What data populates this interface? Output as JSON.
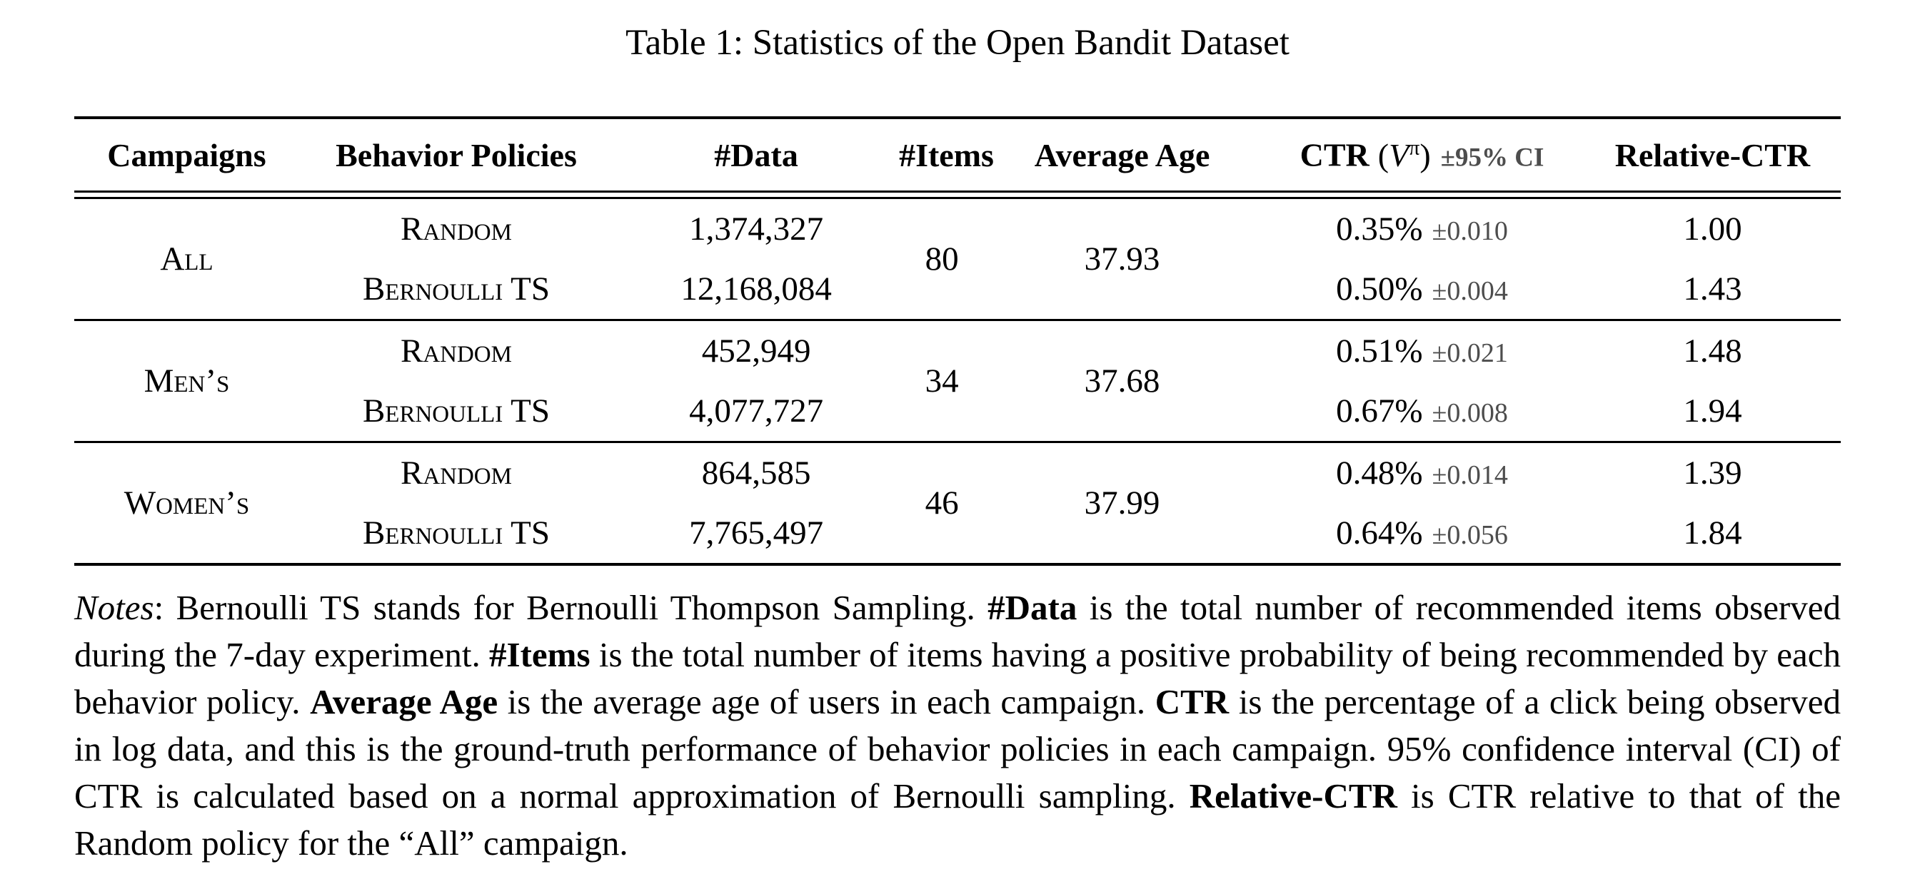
{
  "title": "Table 1: Statistics of the Open Bandit Dataset",
  "table": {
    "headers": {
      "campaigns": "Campaigns",
      "behavior_policies": "Behavior Policies",
      "num_data": "#Data",
      "num_items": "#Items",
      "average_age": "Average Age",
      "ctr": {
        "name": "CTR",
        "open": "(",
        "var": "V",
        "sup": "π",
        "close": ")",
        "ci": "±95% CI"
      },
      "relative_ctr": "Relative-CTR"
    },
    "groups": [
      {
        "campaign": "All",
        "num_items": "80",
        "average_age": "37.93",
        "rows": [
          {
            "policy": "Random",
            "num_data": "1,374,327",
            "ctr": "0.35%",
            "ci": "±0.010",
            "relative_ctr": "1.00"
          },
          {
            "policy": "Bernoulli TS",
            "num_data": "12,168,084",
            "ctr": "0.50%",
            "ci": "±0.004",
            "relative_ctr": "1.43"
          }
        ]
      },
      {
        "campaign": "Men’s",
        "num_items": "34",
        "average_age": "37.68",
        "rows": [
          {
            "policy": "Random",
            "num_data": "452,949",
            "ctr": "0.51%",
            "ci": "±0.021",
            "relative_ctr": "1.48"
          },
          {
            "policy": "Bernoulli TS",
            "num_data": "4,077,727",
            "ctr": "0.67%",
            "ci": "±0.008",
            "relative_ctr": "1.94"
          }
        ]
      },
      {
        "campaign": "Women’s",
        "num_items": "46",
        "average_age": "37.99",
        "rows": [
          {
            "policy": "Random",
            "num_data": "864,585",
            "ctr": "0.48%",
            "ci": "±0.014",
            "relative_ctr": "1.39"
          },
          {
            "policy": "Bernoulli TS",
            "num_data": "7,765,497",
            "ctr": "0.64%",
            "ci": "±0.056",
            "relative_ctr": "1.84"
          }
        ]
      }
    ]
  },
  "notes": {
    "segments": [
      {
        "t": "Notes"
      },
      {
        "t": ": Bernoulli TS stands for Bernoulli Thompson Sampling. "
      },
      {
        "t": "#Data"
      },
      {
        "t": " is the total number of recommended items observed during the 7-day experiment. "
      },
      {
        "t": "#Items"
      },
      {
        "t": " is the total number of items having a positive probability of being recommended by each behavior policy. "
      },
      {
        "t": "Average Age"
      },
      {
        "t": " is the average age of users in each campaign. "
      },
      {
        "t": "CTR"
      },
      {
        "t": " is the percentage of a click being observed in log data, and this is the ground-truth performance of behavior policies in each campaign. 95% confidence interval (CI) of CTR is calculated based on a normal approximation of Bernoulli sampling. "
      },
      {
        "t": "Relative-CTR"
      },
      {
        "t": " is CTR relative to that of the Random policy for the “All” campaign."
      }
    ]
  }
}
